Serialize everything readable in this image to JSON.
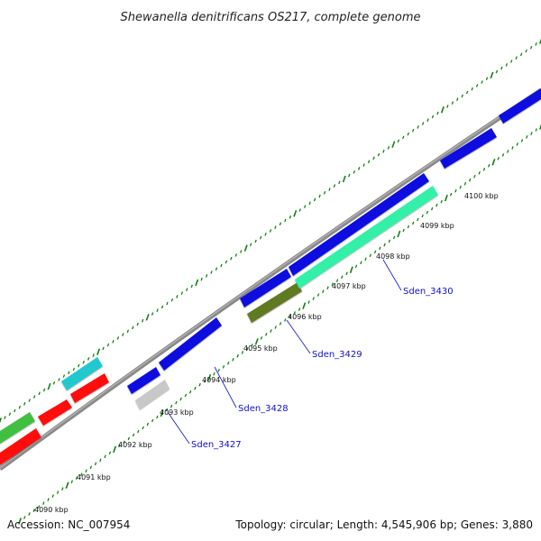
{
  "header": {
    "title": "Shewanella denitrificans OS217, complete genome"
  },
  "footer": {
    "accession": "Accession: NC_007954",
    "summary": "Topology: circular; Length: 4,545,906 bp; Genes: 3,880"
  },
  "scale": {
    "ticks": [
      "4090 kbp",
      "4091 kbp",
      "4092 kbp",
      "4093 kbp",
      "4094 kbp",
      "4095 kbp",
      "4096 kbp",
      "4097 kbp",
      "4098 kbp",
      "4099 kbp",
      "4100 kbp"
    ]
  },
  "gene_labels": {
    "l3427": "Sden_3427",
    "l3428": "Sden_3428",
    "l3429": "Sden_3429",
    "l3430": "Sden_3430"
  },
  "colors": {
    "forward": "#1010e0",
    "reverse_red": "#ff1010",
    "cyan": "#20c8d0",
    "green": "#40c040",
    "olive": "#607a20",
    "aqua_green": "#30f0a8",
    "grey_gene": "#c8c8c8",
    "backbone": "#8a8a8a",
    "tick_green": "#108010"
  }
}
